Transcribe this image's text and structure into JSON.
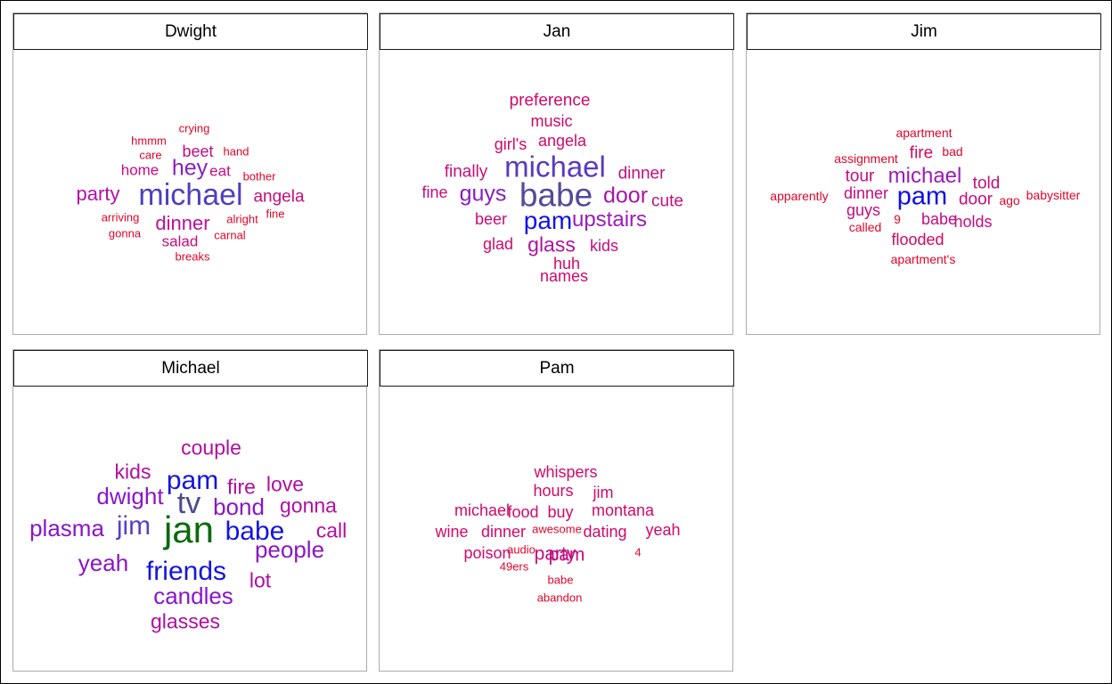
{
  "chart_data": {
    "type": "wordcloud",
    "panels": [
      {
        "title": "Dwight",
        "words": [
          {
            "text": "michael",
            "size": 34,
            "color": "#4f40c0"
          },
          {
            "text": "hey",
            "size": 25,
            "color": "#8a1fc0"
          },
          {
            "text": "party",
            "size": 22,
            "color": "#b50fa8"
          },
          {
            "text": "dinner",
            "size": 22,
            "color": "#b8109c"
          },
          {
            "text": "angela",
            "size": 19,
            "color": "#c60c7a"
          },
          {
            "text": "beet",
            "size": 18,
            "color": "#c20d85"
          },
          {
            "text": "home",
            "size": 17,
            "color": "#c40c82"
          },
          {
            "text": "eat",
            "size": 17,
            "color": "#c60c80"
          },
          {
            "text": "salad",
            "size": 17,
            "color": "#c80b78"
          },
          {
            "text": "crying",
            "size": 13,
            "color": "#e0052a"
          },
          {
            "text": "hmmm",
            "size": 13,
            "color": "#e0052a"
          },
          {
            "text": "hand",
            "size": 13,
            "color": "#e0052a"
          },
          {
            "text": "care",
            "size": 13,
            "color": "#e0052a"
          },
          {
            "text": "bother",
            "size": 13,
            "color": "#e0052a"
          },
          {
            "text": "arriving",
            "size": 13,
            "color": "#e0052a"
          },
          {
            "text": "alright",
            "size": 13,
            "color": "#e0052a"
          },
          {
            "text": "fine",
            "size": 13,
            "color": "#e0052a"
          },
          {
            "text": "gonna",
            "size": 13,
            "color": "#e0052a"
          },
          {
            "text": "carnal",
            "size": 13,
            "color": "#e0052a"
          },
          {
            "text": "breaks",
            "size": 13,
            "color": "#e0052a"
          }
        ]
      },
      {
        "title": "Jan",
        "words": [
          {
            "text": "babe",
            "size": 37,
            "color": "#544a98"
          },
          {
            "text": "michael",
            "size": 33,
            "color": "#5a3ac0"
          },
          {
            "text": "pam",
            "size": 28,
            "color": "#1212e8"
          },
          {
            "text": "guys",
            "size": 25,
            "color": "#8a1dc0"
          },
          {
            "text": "door",
            "size": 25,
            "color": "#a516a8"
          },
          {
            "text": "upstairs",
            "size": 24,
            "color": "#9a1cb8"
          },
          {
            "text": "glass",
            "size": 23,
            "color": "#b2129c"
          },
          {
            "text": "dinner",
            "size": 19,
            "color": "#c50e7c"
          },
          {
            "text": "finally",
            "size": 19,
            "color": "#c50e7c"
          },
          {
            "text": "cute",
            "size": 19,
            "color": "#c50e7c"
          },
          {
            "text": "fine",
            "size": 18,
            "color": "#c80c78"
          },
          {
            "text": "beer",
            "size": 18,
            "color": "#c80c78"
          },
          {
            "text": "kids",
            "size": 18,
            "color": "#c50e7c"
          },
          {
            "text": "preference",
            "size": 19,
            "color": "#d0096a"
          },
          {
            "text": "music",
            "size": 18,
            "color": "#d0096a"
          },
          {
            "text": "girl's",
            "size": 18,
            "color": "#d0096a"
          },
          {
            "text": "angela",
            "size": 18,
            "color": "#d0096a"
          },
          {
            "text": "glad",
            "size": 18,
            "color": "#d0096a"
          },
          {
            "text": "huh",
            "size": 18,
            "color": "#d0096a"
          },
          {
            "text": "names",
            "size": 18,
            "color": "#d0096a"
          }
        ]
      },
      {
        "title": "Jim",
        "words": [
          {
            "text": "pam",
            "size": 29,
            "color": "#0e0ee6"
          },
          {
            "text": "michael",
            "size": 24,
            "color": "#9a1cb8"
          },
          {
            "text": "tour",
            "size": 19,
            "color": "#c40c80"
          },
          {
            "text": "dinner",
            "size": 18,
            "color": "#c40c80"
          },
          {
            "text": "guys",
            "size": 18,
            "color": "#c40c80"
          },
          {
            "text": "door",
            "size": 19,
            "color": "#c40c80"
          },
          {
            "text": "told",
            "size": 19,
            "color": "#c40c80"
          },
          {
            "text": "babe",
            "size": 18,
            "color": "#c40c80"
          },
          {
            "text": "holds",
            "size": 18,
            "color": "#c40c80"
          },
          {
            "text": "fire",
            "size": 19,
            "color": "#d0085e"
          },
          {
            "text": "flooded",
            "size": 18,
            "color": "#d0085e"
          },
          {
            "text": "apartment",
            "size": 14,
            "color": "#e0052a"
          },
          {
            "text": "bad",
            "size": 14,
            "color": "#e0052a"
          },
          {
            "text": "assignment",
            "size": 14,
            "color": "#e0052a"
          },
          {
            "text": "apparently",
            "size": 14,
            "color": "#e0052a"
          },
          {
            "text": "ago",
            "size": 14,
            "color": "#e0052a"
          },
          {
            "text": "babysitter",
            "size": 14,
            "color": "#e0052a"
          },
          {
            "text": "9",
            "size": 14,
            "color": "#e0052a"
          },
          {
            "text": "called",
            "size": 14,
            "color": "#e0052a"
          },
          {
            "text": "apartment's",
            "size": 14,
            "color": "#e0052a"
          }
        ]
      },
      {
        "title": "Michael",
        "words": [
          {
            "text": "jan",
            "size": 42,
            "color": "#0a6a0a"
          },
          {
            "text": "tv",
            "size": 34,
            "color": "#4a4a8e"
          },
          {
            "text": "pam",
            "size": 30,
            "color": "#1414e0"
          },
          {
            "text": "babe",
            "size": 30,
            "color": "#1414e0"
          },
          {
            "text": "jim",
            "size": 30,
            "color": "#5a40c8"
          },
          {
            "text": "friends",
            "size": 30,
            "color": "#1414e0"
          },
          {
            "text": "bond",
            "size": 26,
            "color": "#8a16c8"
          },
          {
            "text": "dwight",
            "size": 26,
            "color": "#8a16c8"
          },
          {
            "text": "plasma",
            "size": 26,
            "color": "#8a16c8"
          },
          {
            "text": "people",
            "size": 26,
            "color": "#8a16c8"
          },
          {
            "text": "yeah",
            "size": 26,
            "color": "#8a16c8"
          },
          {
            "text": "candles",
            "size": 26,
            "color": "#8a16c8"
          },
          {
            "text": "kids",
            "size": 23,
            "color": "#b00ea0"
          },
          {
            "text": "fire",
            "size": 23,
            "color": "#b00ea0"
          },
          {
            "text": "love",
            "size": 23,
            "color": "#b00ea0"
          },
          {
            "text": "gonna",
            "size": 23,
            "color": "#b00ea0"
          },
          {
            "text": "call",
            "size": 23,
            "color": "#b00ea0"
          },
          {
            "text": "lot",
            "size": 23,
            "color": "#b00ea0"
          },
          {
            "text": "couple",
            "size": 23,
            "color": "#b00ea0"
          },
          {
            "text": "glasses",
            "size": 23,
            "color": "#b00ea0"
          }
        ]
      },
      {
        "title": "Pam",
        "words": [
          {
            "text": "pam",
            "size": 21,
            "color": "#c30e80"
          },
          {
            "text": "party",
            "size": 21,
            "color": "#c30e80"
          },
          {
            "text": "whispers",
            "size": 18,
            "color": "#d0096a"
          },
          {
            "text": "hours",
            "size": 18,
            "color": "#d0096a"
          },
          {
            "text": "food",
            "size": 18,
            "color": "#d0096a"
          },
          {
            "text": "buy",
            "size": 18,
            "color": "#d0096a"
          },
          {
            "text": "montana",
            "size": 18,
            "color": "#d0096a"
          },
          {
            "text": "wine",
            "size": 18,
            "color": "#d0096a"
          },
          {
            "text": "dinner",
            "size": 18,
            "color": "#d0096a"
          },
          {
            "text": "dating",
            "size": 18,
            "color": "#d0096a"
          },
          {
            "text": "yeah",
            "size": 18,
            "color": "#d0096a"
          },
          {
            "text": "poison",
            "size": 18,
            "color": "#d0096a"
          },
          {
            "text": "jim",
            "size": 18,
            "color": "#d0096a"
          },
          {
            "text": "michael",
            "size": 18,
            "color": "#d0096a"
          },
          {
            "text": "audio",
            "size": 13,
            "color": "#e0052a"
          },
          {
            "text": "49ers",
            "size": 13,
            "color": "#e0052a"
          },
          {
            "text": "4",
            "size": 13,
            "color": "#e0052a"
          },
          {
            "text": "babe",
            "size": 13,
            "color": "#e0052a"
          },
          {
            "text": "abandon",
            "size": 13,
            "color": "#e0052a"
          },
          {
            "text": "awesome",
            "size": 13,
            "color": "#e0052a"
          }
        ]
      }
    ]
  }
}
